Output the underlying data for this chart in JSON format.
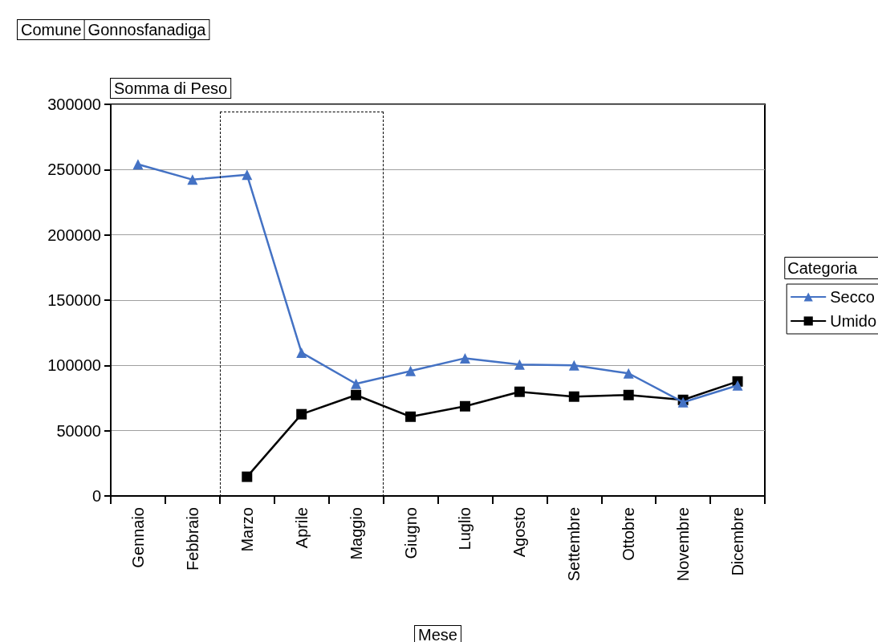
{
  "chart_data": {
    "type": "line",
    "title": "Comune",
    "subtitle": "Gonnosfanadiga",
    "xlabel": "Mese",
    "ylabel": "Somma di Peso",
    "legend_title": "Categoria",
    "categories": [
      "Gennaio",
      "Febbraio",
      "Marzo",
      "Aprile",
      "Maggio",
      "Giugno",
      "Luglio",
      "Agosto",
      "Settembre",
      "Ottobre",
      "Novembre",
      "Dicembre"
    ],
    "series": [
      {
        "name": "Secco",
        "color": "#4472c4",
        "marker": "triangle",
        "values": [
          254000,
          242300,
          246000,
          109800,
          85900,
          95700,
          105500,
          100600,
          100000,
          93900,
          71800,
          84700
        ]
      },
      {
        "name": "Umido",
        "color": "#000000",
        "marker": "square",
        "values": [
          null,
          null,
          14700,
          62600,
          77300,
          60700,
          68700,
          79800,
          76100,
          77300,
          73600,
          87700
        ]
      }
    ],
    "ylim": [
      0,
      300000
    ],
    "yticks": [
      0,
      50000,
      100000,
      150000,
      200000,
      250000,
      300000
    ],
    "grid": "y",
    "legend": "right"
  }
}
